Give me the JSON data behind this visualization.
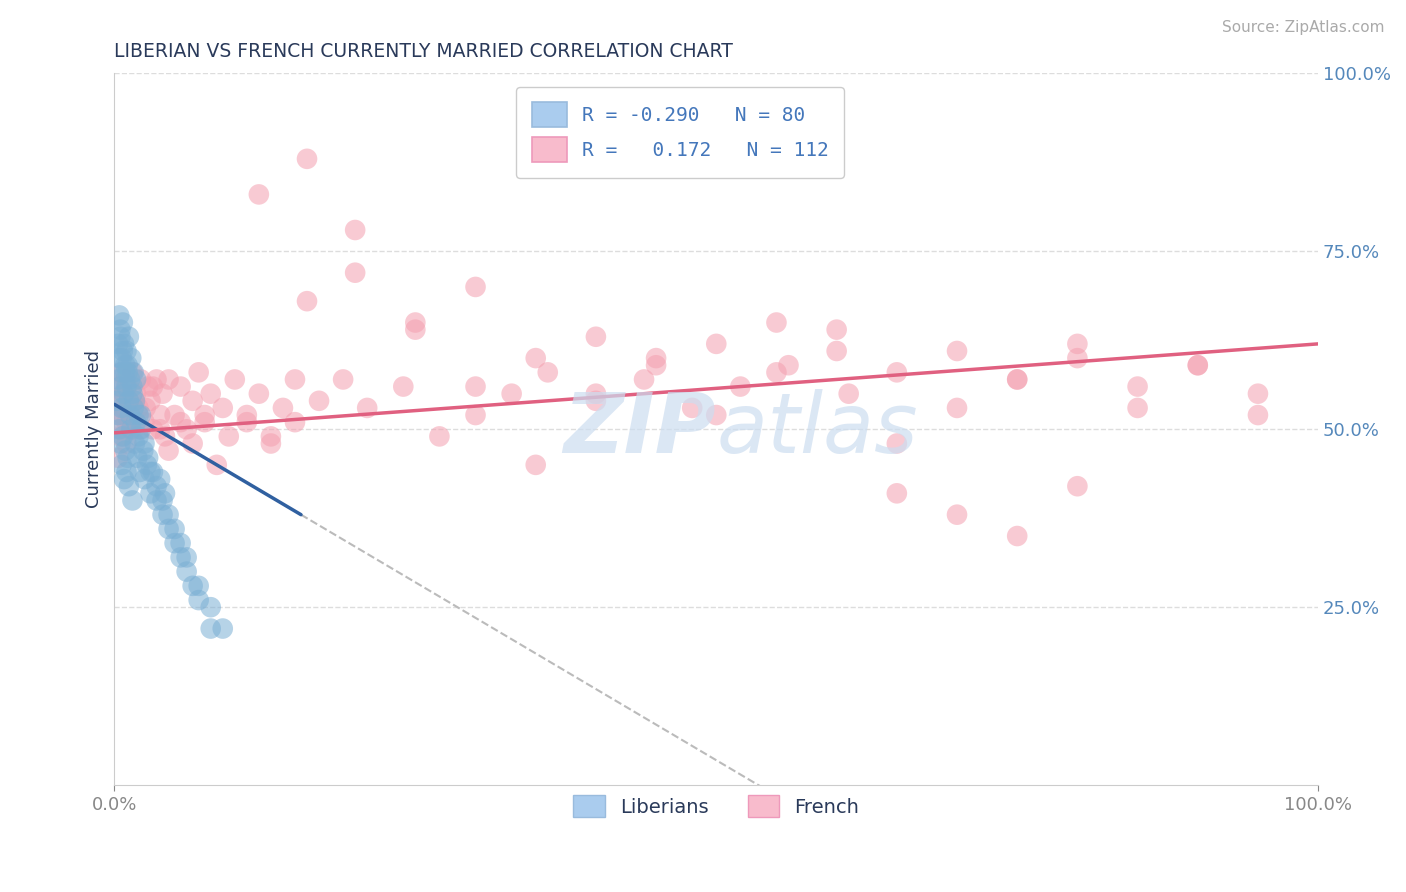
{
  "title": "LIBERIAN VS FRENCH CURRENTLY MARRIED CORRELATION CHART",
  "source": "Source: ZipAtlas.com",
  "ylabel": "Currently Married",
  "xlim": [
    0,
    1.0
  ],
  "ylim": [
    0,
    1.0
  ],
  "legend_labels": [
    "Liberians",
    "French"
  ],
  "R_blue": -0.29,
  "N_blue": 80,
  "R_pink": 0.172,
  "N_pink": 112,
  "blue_scatter_color": "#7BAFD4",
  "pink_scatter_color": "#F4A0B0",
  "blue_line_color": "#3060A0",
  "pink_line_color": "#E06080",
  "blue_patch_color": "#AACCEE",
  "pink_patch_color": "#F8BBCC",
  "title_color": "#2A3A5A",
  "tick_label_color": "#5588BB",
  "grid_color": "#DDDDDD",
  "watermark_text": "ZIPAtlas",
  "watermark_color": "#CCDDF0",
  "legend_value_color": "#4477BB",
  "legend_label_color": "#334466",
  "blue_x": [
    0.002,
    0.003,
    0.003,
    0.004,
    0.004,
    0.005,
    0.005,
    0.005,
    0.006,
    0.006,
    0.006,
    0.007,
    0.007,
    0.008,
    0.008,
    0.009,
    0.009,
    0.01,
    0.01,
    0.011,
    0.011,
    0.012,
    0.012,
    0.013,
    0.014,
    0.015,
    0.015,
    0.016,
    0.017,
    0.018,
    0.019,
    0.02,
    0.021,
    0.022,
    0.024,
    0.025,
    0.027,
    0.03,
    0.032,
    0.035,
    0.038,
    0.04,
    0.042,
    0.045,
    0.05,
    0.055,
    0.06,
    0.065,
    0.07,
    0.08,
    0.003,
    0.004,
    0.005,
    0.006,
    0.007,
    0.008,
    0.009,
    0.01,
    0.011,
    0.012,
    0.013,
    0.014,
    0.015,
    0.016,
    0.017,
    0.018,
    0.02,
    0.022,
    0.025,
    0.028,
    0.03,
    0.035,
    0.04,
    0.045,
    0.05,
    0.055,
    0.06,
    0.07,
    0.08,
    0.09
  ],
  "blue_y": [
    0.54,
    0.57,
    0.52,
    0.6,
    0.5,
    0.63,
    0.56,
    0.48,
    0.58,
    0.53,
    0.45,
    0.61,
    0.49,
    0.55,
    0.43,
    0.59,
    0.47,
    0.56,
    0.44,
    0.58,
    0.46,
    0.54,
    0.42,
    0.52,
    0.5,
    0.55,
    0.4,
    0.53,
    0.48,
    0.51,
    0.46,
    0.49,
    0.44,
    0.52,
    0.47,
    0.43,
    0.45,
    0.41,
    0.44,
    0.4,
    0.43,
    0.38,
    0.41,
    0.36,
    0.34,
    0.32,
    0.3,
    0.28,
    0.26,
    0.22,
    0.62,
    0.66,
    0.64,
    0.6,
    0.65,
    0.62,
    0.58,
    0.61,
    0.59,
    0.63,
    0.57,
    0.6,
    0.56,
    0.58,
    0.54,
    0.57,
    0.52,
    0.5,
    0.48,
    0.46,
    0.44,
    0.42,
    0.4,
    0.38,
    0.36,
    0.34,
    0.32,
    0.28,
    0.25,
    0.22
  ],
  "pink_x": [
    0.002,
    0.003,
    0.004,
    0.005,
    0.006,
    0.007,
    0.008,
    0.009,
    0.01,
    0.011,
    0.012,
    0.013,
    0.015,
    0.016,
    0.018,
    0.02,
    0.022,
    0.025,
    0.028,
    0.03,
    0.032,
    0.035,
    0.038,
    0.04,
    0.042,
    0.045,
    0.05,
    0.055,
    0.06,
    0.065,
    0.07,
    0.075,
    0.08,
    0.09,
    0.1,
    0.11,
    0.12,
    0.13,
    0.14,
    0.15,
    0.003,
    0.005,
    0.007,
    0.01,
    0.013,
    0.017,
    0.021,
    0.026,
    0.032,
    0.038,
    0.045,
    0.055,
    0.065,
    0.075,
    0.085,
    0.095,
    0.11,
    0.13,
    0.15,
    0.17,
    0.19,
    0.21,
    0.24,
    0.27,
    0.3,
    0.33,
    0.36,
    0.4,
    0.44,
    0.48,
    0.52,
    0.56,
    0.61,
    0.65,
    0.7,
    0.75,
    0.8,
    0.85,
    0.9,
    0.95,
    0.16,
    0.2,
    0.25,
    0.3,
    0.35,
    0.4,
    0.45,
    0.5,
    0.55,
    0.6,
    0.65,
    0.7,
    0.75,
    0.8,
    0.12,
    0.16,
    0.2,
    0.25,
    0.3,
    0.35,
    0.4,
    0.45,
    0.5,
    0.55,
    0.6,
    0.65,
    0.7,
    0.75,
    0.8,
    0.85,
    0.9,
    0.95
  ],
  "pink_y": [
    0.54,
    0.56,
    0.52,
    0.58,
    0.5,
    0.55,
    0.53,
    0.57,
    0.51,
    0.56,
    0.54,
    0.52,
    0.58,
    0.5,
    0.55,
    0.53,
    0.57,
    0.51,
    0.56,
    0.54,
    0.5,
    0.57,
    0.52,
    0.55,
    0.49,
    0.57,
    0.52,
    0.56,
    0.5,
    0.54,
    0.58,
    0.51,
    0.55,
    0.53,
    0.57,
    0.51,
    0.55,
    0.49,
    0.53,
    0.57,
    0.46,
    0.49,
    0.52,
    0.48,
    0.51,
    0.54,
    0.5,
    0.53,
    0.56,
    0.5,
    0.47,
    0.51,
    0.48,
    0.52,
    0.45,
    0.49,
    0.52,
    0.48,
    0.51,
    0.54,
    0.57,
    0.53,
    0.56,
    0.49,
    0.52,
    0.55,
    0.58,
    0.54,
    0.57,
    0.53,
    0.56,
    0.59,
    0.55,
    0.58,
    0.61,
    0.57,
    0.6,
    0.56,
    0.59,
    0.55,
    0.68,
    0.72,
    0.64,
    0.56,
    0.6,
    0.63,
    0.59,
    0.62,
    0.65,
    0.61,
    0.41,
    0.38,
    0.35,
    0.42,
    0.83,
    0.88,
    0.78,
    0.65,
    0.7,
    0.45,
    0.55,
    0.6,
    0.52,
    0.58,
    0.64,
    0.48,
    0.53,
    0.57,
    0.62,
    0.53,
    0.59,
    0.52
  ]
}
